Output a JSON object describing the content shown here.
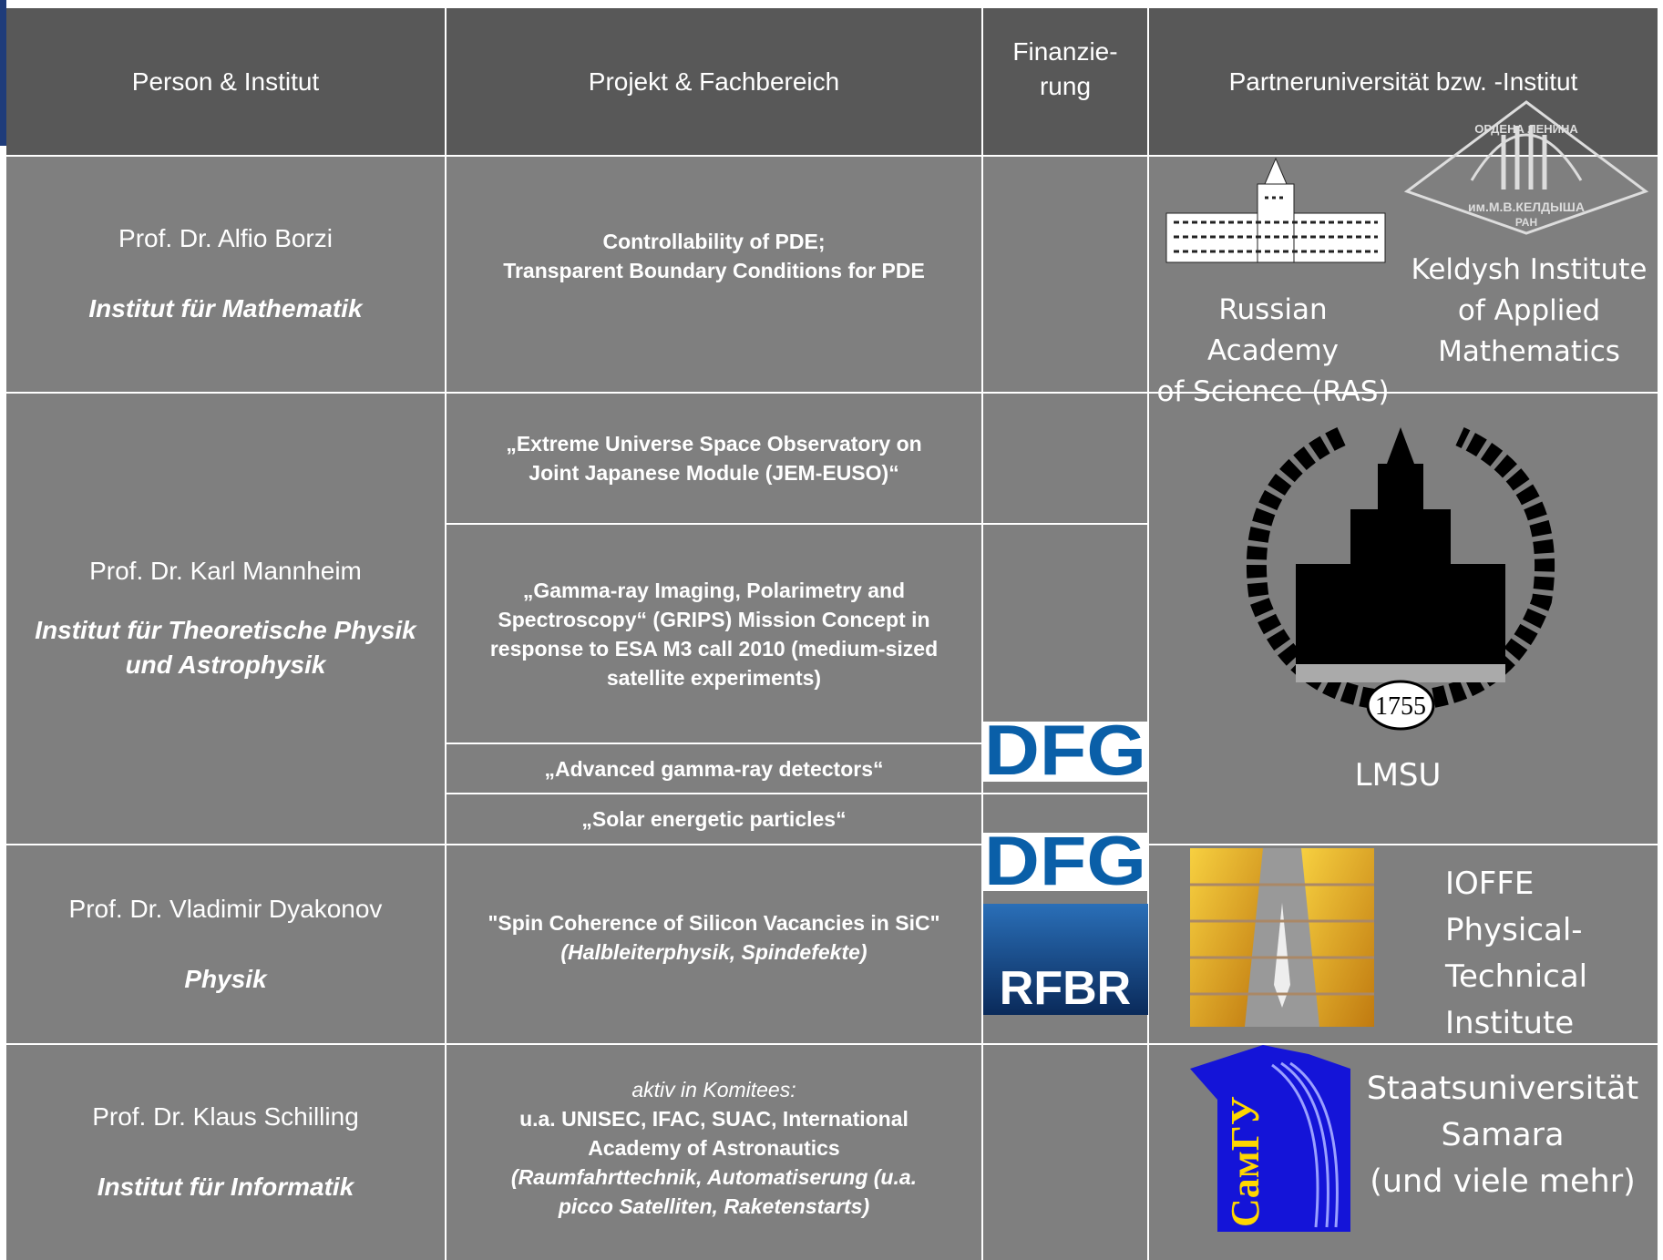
{
  "header": [
    "Person & Institut",
    "Projekt & Fachbereich",
    "Finanzie-\nrung",
    "Partneruniversität bzw.   -Institut"
  ],
  "rows": [
    {
      "person": "Prof. Dr. Alfio Borzi",
      "institute": "Institut für Mathematik",
      "project": "Controllability of PDE;\nTransparent Boundary Conditions for PDE",
      "partners": [
        "Russian Academy\nof Science (RAS)",
        "Keldysh Institute\nof Applied\nMathematics"
      ],
      "emblem_text": [
        "ОРДЕНА ЛЕНИНА",
        "им.М.В.КЕЛДЫША",
        "РАН"
      ]
    },
    {
      "person": "Prof. Dr. Karl Mannheim",
      "institute": "Institut für Theoretische Physik\nund Astrophysik",
      "projects": [
        "„Extreme Universe Space Observatory on\nJoint Japanese Module (JEM-EUSO)“",
        "„Gamma-ray Imaging, Polarimetry and\nSpectroscopy“ (GRIPS) Mission Concept in\nresponse to ESA M3 call 2010 (medium-sized\nsatellite experiments)",
        "„Advanced gamma-ray detectors“",
        "„Solar energetic particles“"
      ],
      "funding": [
        "DFG"
      ],
      "partner": "LMSU",
      "emblem_text": "1755"
    },
    {
      "person": "Prof. Dr. Vladimir Dyakonov",
      "institute": "Physik",
      "project": "\"Spin Coherence of Silicon Vacancies in SiC\"",
      "subject": "(Halbleiterphysik, Spindefekte)",
      "funding": [
        "DFG",
        "RFBR"
      ],
      "partner": "IOFFE\nPhysical-\nTechnical\nInstitute"
    },
    {
      "person": "Prof. Dr. Klaus Schilling",
      "institute": "Institut für Informatik",
      "note": "aktiv in Komitees:",
      "project": "u.a. UNISEC, IFAC, SUAC, International\nAcademy of Astronautics",
      "subject": "(Raumfahrttechnik, Automatiserung (u.a.\npicco Satelliten, Raketenstarts)",
      "partner": "Staatsuniversität\nSamara\n(und viele mehr)",
      "logo_text": "СамГУ"
    }
  ]
}
